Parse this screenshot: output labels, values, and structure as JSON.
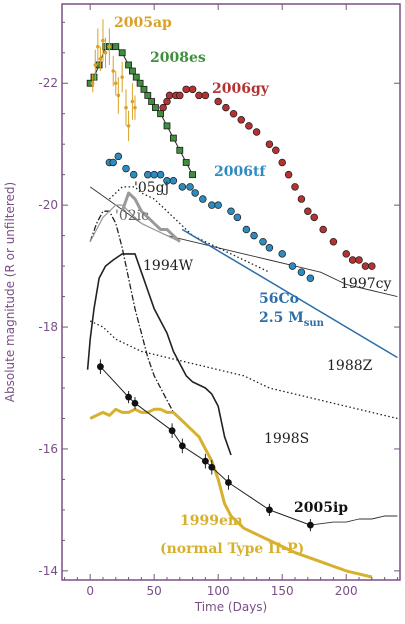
{
  "chart_data": {
    "type": "line",
    "xlabel": "Time (Days)",
    "ylabel": "Absolute magnitude (R or unfiltered)",
    "xlim": [
      -22,
      242
    ],
    "ylim": [
      -13.85,
      -23.3
    ],
    "x_ticks": [
      0,
      50,
      100,
      150,
      200
    ],
    "y_ticks": [
      -22,
      -20,
      -18,
      -16,
      -14
    ],
    "colors": {
      "axis": "#7a4f86",
      "sn2005ap": "#d9a227",
      "sn2008es": "#3f8f3f",
      "sn2006gy": "#b63232",
      "sn2006tf": "#2e8bc0",
      "co_decay": "#2e6ea8",
      "sn1999em": "#d7b12e",
      "gray": "#9a9a9a"
    },
    "series": [
      {
        "name": "2005ap",
        "style": "points-errorbars",
        "x": [
          2,
          4,
          6,
          8,
          10,
          12,
          15,
          18,
          20,
          22,
          25,
          28,
          30,
          33,
          35
        ],
        "y": [
          -22.0,
          -22.3,
          -22.6,
          -22.4,
          -22.7,
          -22.5,
          -22.6,
          -22.2,
          -22.0,
          -21.8,
          -22.1,
          -21.6,
          -21.3,
          -21.7,
          -21.6
        ],
        "err": [
          0.15,
          0.25,
          0.3,
          0.2,
          0.35,
          0.25,
          0.3,
          0.25,
          0.2,
          0.3,
          0.25,
          0.3,
          0.25,
          0.3,
          0.2
        ]
      },
      {
        "name": "2008es",
        "style": "squares-line",
        "x": [
          0,
          3,
          7,
          12,
          15,
          20,
          25,
          30,
          33,
          36,
          39,
          42,
          45,
          48,
          51,
          55,
          60,
          65,
          70,
          75,
          80
        ],
        "y": [
          -22.0,
          -22.1,
          -22.3,
          -22.6,
          -22.6,
          -22.6,
          -22.5,
          -22.3,
          -22.2,
          -22.1,
          -22.0,
          -21.9,
          -21.8,
          -21.7,
          -21.6,
          -21.5,
          -21.3,
          -21.1,
          -20.9,
          -20.7,
          -20.5
        ]
      },
      {
        "name": "2006gy",
        "style": "circles",
        "x": [
          57,
          60,
          62,
          67,
          70,
          75,
          80,
          85,
          90,
          100,
          106,
          112,
          118,
          124,
          130,
          140,
          145,
          150,
          155,
          160,
          165,
          170,
          175,
          182,
          190,
          200,
          205,
          210,
          215,
          220
        ],
        "y": [
          -21.6,
          -21.7,
          -21.8,
          -21.8,
          -21.8,
          -21.9,
          -21.9,
          -21.8,
          -21.8,
          -21.7,
          -21.6,
          -21.5,
          -21.4,
          -21.3,
          -21.2,
          -21.0,
          -20.9,
          -20.7,
          -20.5,
          -20.3,
          -20.1,
          -19.9,
          -19.8,
          -19.6,
          -19.4,
          -19.2,
          -19.1,
          -19.1,
          -19.0,
          -19.0
        ]
      },
      {
        "name": "2006tf",
        "style": "circles",
        "x": [
          15,
          18,
          22,
          28,
          34,
          45,
          50,
          55,
          60,
          65,
          72,
          78,
          82,
          88,
          95,
          100,
          110,
          115,
          122,
          128,
          135,
          140,
          150,
          158,
          165,
          172
        ],
        "y": [
          -20.7,
          -20.7,
          -20.8,
          -20.6,
          -20.5,
          -20.5,
          -20.5,
          -20.5,
          -20.4,
          -20.4,
          -20.3,
          -20.3,
          -20.2,
          -20.1,
          -20.0,
          -20.0,
          -19.9,
          -19.8,
          -19.6,
          -19.5,
          -19.4,
          -19.3,
          -19.2,
          -19.0,
          -18.9,
          -18.8
        ]
      },
      {
        "name": "1997cy",
        "style": "thin-line",
        "x": [
          0,
          20,
          40,
          60,
          80,
          100,
          120,
          140,
          160,
          180,
          200,
          220,
          240
        ],
        "y": [
          -20.3,
          -20.0,
          -19.7,
          -19.5,
          -19.4,
          -19.3,
          -19.2,
          -19.1,
          -19.0,
          -18.9,
          -18.7,
          -18.6,
          -18.5
        ]
      },
      {
        "name": "'05gj",
        "style": "gray-thick-line",
        "x": [
          25,
          30,
          35,
          40,
          45,
          50,
          55,
          60,
          65,
          70
        ],
        "y": [
          -19.9,
          -20.2,
          -20.1,
          -19.9,
          -19.8,
          -19.7,
          -19.6,
          -19.6,
          -19.5,
          -19.4
        ]
      },
      {
        "name": "'02ic",
        "style": "gray-thin-line",
        "x": [
          0,
          5,
          10,
          15,
          20,
          25,
          30,
          35,
          40,
          50,
          60,
          70
        ],
        "y": [
          -19.4,
          -19.6,
          -19.8,
          -19.9,
          -20.0,
          -20.0,
          -19.9,
          -19.8,
          -19.7,
          -19.6,
          -19.5,
          -19.4
        ]
      },
      {
        "name": "dotted",
        "style": "dotted-line",
        "x": [
          15,
          20,
          25,
          30,
          35,
          40,
          50,
          60,
          70,
          80,
          90,
          100,
          110,
          120,
          130,
          140
        ],
        "y": [
          -20.1,
          -20.2,
          -20.3,
          -20.3,
          -20.3,
          -20.2,
          -20.1,
          -19.9,
          -19.7,
          -19.5,
          -19.4,
          -19.3,
          -19.2,
          -19.1,
          -19.0,
          -18.9
        ]
      },
      {
        "name": "1994W",
        "style": "black-line",
        "x": [
          -2,
          0,
          3,
          7,
          12,
          18,
          25,
          30,
          35,
          40,
          45,
          50,
          55,
          60,
          65,
          70,
          75,
          80,
          90,
          95,
          100,
          105,
          110
        ],
        "y": [
          -17.3,
          -17.8,
          -18.3,
          -18.8,
          -19.0,
          -19.1,
          -19.2,
          -19.2,
          -19.2,
          -18.9,
          -18.6,
          -18.3,
          -18.1,
          -17.9,
          -17.6,
          -17.4,
          -17.2,
          -17.1,
          -17.0,
          -16.9,
          -16.7,
          -16.2,
          -15.9
        ]
      },
      {
        "name": "1998S",
        "style": "dashdot-line",
        "x": [
          0,
          5,
          10,
          15,
          20,
          25,
          30,
          35,
          40,
          45,
          50,
          55,
          60,
          65,
          70,
          75,
          80,
          85
        ],
        "y": [
          -19.4,
          -19.7,
          -19.9,
          -19.9,
          -19.7,
          -19.3,
          -18.8,
          -18.3,
          -17.9,
          -17.5,
          -17.2,
          -17.0,
          -16.8,
          -16.6,
          -16.5,
          -16.4,
          -16.3,
          -16.2
        ]
      },
      {
        "name": "1988Z",
        "style": "dotted-line",
        "x": [
          0,
          10,
          20,
          30,
          40,
          60,
          80,
          100,
          120,
          140,
          160,
          180,
          200,
          220,
          240
        ],
        "y": [
          -18.1,
          -18.0,
          -17.8,
          -17.7,
          -17.6,
          -17.5,
          -17.4,
          -17.3,
          -17.2,
          -17.0,
          -16.9,
          -16.8,
          -16.7,
          -16.6,
          -16.5
        ]
      },
      {
        "name": "2005ip",
        "style": "black-points-line",
        "x": [
          8,
          30,
          35,
          64,
          72,
          90,
          95,
          108,
          140,
          172
        ],
        "y": [
          -17.35,
          -16.85,
          -16.75,
          -16.3,
          -16.05,
          -15.8,
          -15.7,
          -15.45,
          -15.0,
          -14.75
        ],
        "err": [
          0.12,
          0.1,
          0.1,
          0.12,
          0.12,
          0.12,
          0.12,
          0.12,
          0.1,
          0.1
        ]
      },
      {
        "name": "2005ip-tail",
        "style": "thin-line",
        "x": [
          172,
          190,
          200,
          210,
          220,
          230,
          240
        ],
        "y": [
          -14.75,
          -14.8,
          -14.8,
          -14.85,
          -14.85,
          -14.9,
          -14.9
        ]
      },
      {
        "name": "1999em",
        "style": "gold-thick-line",
        "x": [
          0,
          5,
          10,
          15,
          20,
          25,
          30,
          35,
          40,
          45,
          50,
          55,
          60,
          65,
          70,
          75,
          80,
          85,
          90,
          95,
          100,
          105,
          110,
          115,
          120,
          130,
          140,
          160,
          180,
          200,
          220
        ],
        "y": [
          -16.5,
          -16.55,
          -16.6,
          -16.55,
          -16.65,
          -16.6,
          -16.6,
          -16.65,
          -16.6,
          -16.6,
          -16.65,
          -16.65,
          -16.6,
          -16.6,
          -16.5,
          -16.4,
          -16.3,
          -16.2,
          -16.0,
          -15.8,
          -15.5,
          -15.1,
          -14.9,
          -14.8,
          -14.7,
          -14.6,
          -14.5,
          -14.3,
          -14.15,
          -14.0,
          -13.9
        ]
      },
      {
        "name": "56Co",
        "style": "blue-line",
        "x": [
          72,
          240
        ],
        "y": [
          -19.6,
          -17.5
        ]
      }
    ],
    "labels": {
      "sn2005ap": "2005ap",
      "sn2008es": "2008es",
      "sn2006gy": "2006gy",
      "sn2006tf": "2006tf",
      "sn05gj": "'05gj",
      "sn02ic": "'02ic",
      "sn1994W": "1994W",
      "sn1997cy": "1997cy",
      "co_line1": "56Co",
      "co_line2": "2.5 M",
      "co_sub": "sun",
      "sn1988Z": "1988Z",
      "sn1998S": "1998S",
      "sn2005ip": "2005ip",
      "sn1999em": "1999em",
      "sn1999em_note": "(normal Type II-P)"
    }
  }
}
